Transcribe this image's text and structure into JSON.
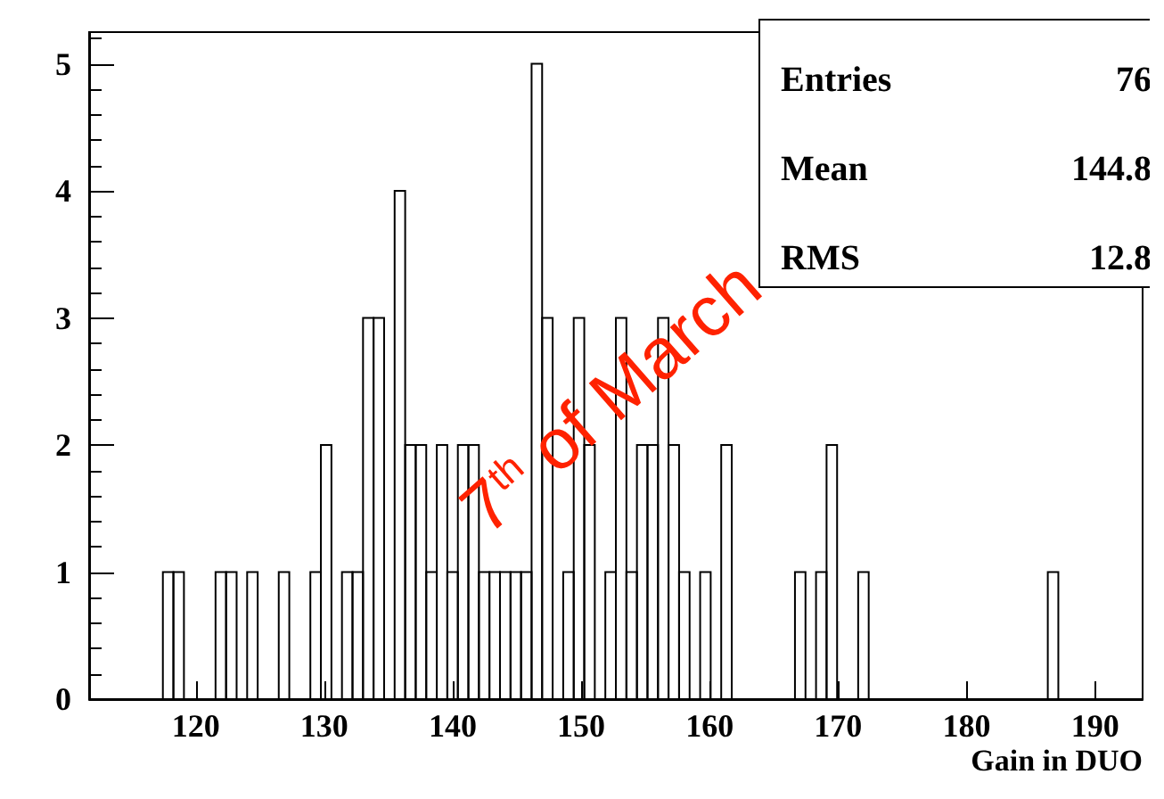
{
  "chart_data": {
    "type": "histogram",
    "xlabel": "Gain in DUO",
    "bins": [
      117.44,
      118.26,
      119.08,
      119.9,
      120.72,
      121.54,
      122.36,
      123.18,
      124.0,
      124.82,
      125.64,
      126.46,
      127.28,
      128.1,
      128.92,
      129.74,
      130.56,
      131.38,
      132.2,
      133.02,
      133.84,
      134.66,
      135.48,
      136.3,
      137.12,
      137.94,
      138.76,
      139.58,
      140.4,
      141.22,
      142.04,
      142.86,
      143.68,
      144.5,
      145.32,
      146.14,
      146.96,
      147.78,
      148.6,
      149.42,
      150.24,
      151.06,
      151.88,
      152.7,
      153.52,
      154.34,
      155.16,
      155.98,
      156.8,
      157.62,
      158.44,
      159.26,
      160.08,
      160.9,
      161.72,
      162.54,
      163.36,
      164.18,
      165.0,
      165.82,
      166.64,
      167.46,
      168.28,
      169.1,
      169.92,
      170.74,
      171.56,
      172.38,
      173.2,
      174.02,
      174.84,
      175.66,
      176.48,
      177.3,
      178.12,
      178.94,
      179.76,
      180.58,
      181.4,
      182.22,
      183.04,
      183.86,
      184.68,
      185.5,
      186.32,
      187.14
    ],
    "values": [
      1,
      1,
      0,
      0,
      0,
      1,
      1,
      0,
      1,
      0,
      0,
      1,
      0,
      0,
      1,
      2,
      0,
      1,
      1,
      3,
      3,
      0,
      4,
      2,
      2,
      1,
      2,
      1,
      2,
      2,
      1,
      1,
      1,
      1,
      1,
      5,
      3,
      0,
      1,
      3,
      2,
      0,
      1,
      3,
      1,
      2,
      2,
      3,
      2,
      1,
      0,
      1,
      0,
      2,
      0,
      0,
      0,
      0,
      0,
      0,
      1,
      0,
      1,
      2,
      0,
      0,
      1,
      0,
      0,
      0,
      0,
      0,
      0,
      0,
      0,
      0,
      0,
      0,
      0,
      0,
      0,
      0,
      0,
      0,
      1
    ],
    "xlim": [
      111.7,
      193.7
    ],
    "xticks": [
      120,
      130,
      140,
      150,
      160,
      170,
      180,
      190
    ],
    "ylim": [
      0,
      5.25
    ],
    "yticks": [
      0,
      1,
      2,
      3,
      4,
      5
    ],
    "grid": false,
    "annotations": [
      "Entries 76",
      "Mean 144.8",
      "RMS 12.8",
      "7$^{th}$ of March"
    ]
  }
}
